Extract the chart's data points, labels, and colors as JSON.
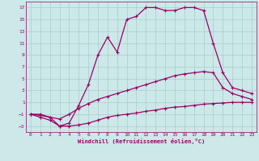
{
  "xlabel": "Windchill (Refroidissement éolien,°C)",
  "bg_color": "#cce8e8",
  "grid_color": "#aacccc",
  "line_color": "#990066",
  "xlim": [
    -0.5,
    23.5
  ],
  "ylim": [
    -4,
    18
  ],
  "xticks": [
    0,
    1,
    2,
    3,
    4,
    5,
    6,
    7,
    8,
    9,
    10,
    11,
    12,
    13,
    14,
    15,
    16,
    17,
    18,
    19,
    20,
    21,
    22,
    23
  ],
  "yticks": [
    -3,
    -1,
    1,
    3,
    5,
    7,
    9,
    11,
    13,
    15,
    17
  ],
  "curve1_x": [
    0,
    1,
    2,
    3,
    4,
    5,
    6,
    7,
    8,
    9,
    10,
    11,
    12,
    13,
    14,
    15,
    16,
    17,
    18,
    19,
    20,
    21,
    22,
    23
  ],
  "curve1_y": [
    -1,
    -1.2,
    -1.5,
    -3,
    -3,
    -2.8,
    -2.5,
    -2.0,
    -1.5,
    -1.2,
    -1.0,
    -0.8,
    -0.5,
    -0.3,
    0.0,
    0.2,
    0.3,
    0.5,
    0.7,
    0.8,
    0.9,
    1.0,
    1.0,
    1.0
  ],
  "curve2_x": [
    0,
    1,
    2,
    3,
    4,
    5,
    6,
    7,
    8,
    9,
    10,
    11,
    12,
    13,
    14,
    15,
    16,
    17,
    18,
    19,
    20,
    21,
    22,
    23
  ],
  "curve2_y": [
    -1,
    -1.0,
    -1.5,
    -1.8,
    -1.0,
    0.0,
    0.8,
    1.5,
    2.0,
    2.5,
    3.0,
    3.5,
    4.0,
    4.5,
    5.0,
    5.5,
    5.8,
    6.0,
    6.2,
    6.0,
    3.5,
    2.5,
    2.0,
    1.5
  ],
  "curve3_x": [
    0,
    1,
    2,
    3,
    4,
    5,
    6,
    7,
    8,
    9,
    10,
    11,
    12,
    13,
    14,
    15,
    16,
    17,
    18,
    19,
    20,
    21,
    22,
    23
  ],
  "curve3_y": [
    -1,
    -1.5,
    -2.0,
    -3.0,
    -2.5,
    0.5,
    4.0,
    9.0,
    12.0,
    9.5,
    15.0,
    15.5,
    17.0,
    17.0,
    16.5,
    16.5,
    17.0,
    17.0,
    16.5,
    11.0,
    6.0,
    3.5,
    3.0,
    2.5
  ]
}
